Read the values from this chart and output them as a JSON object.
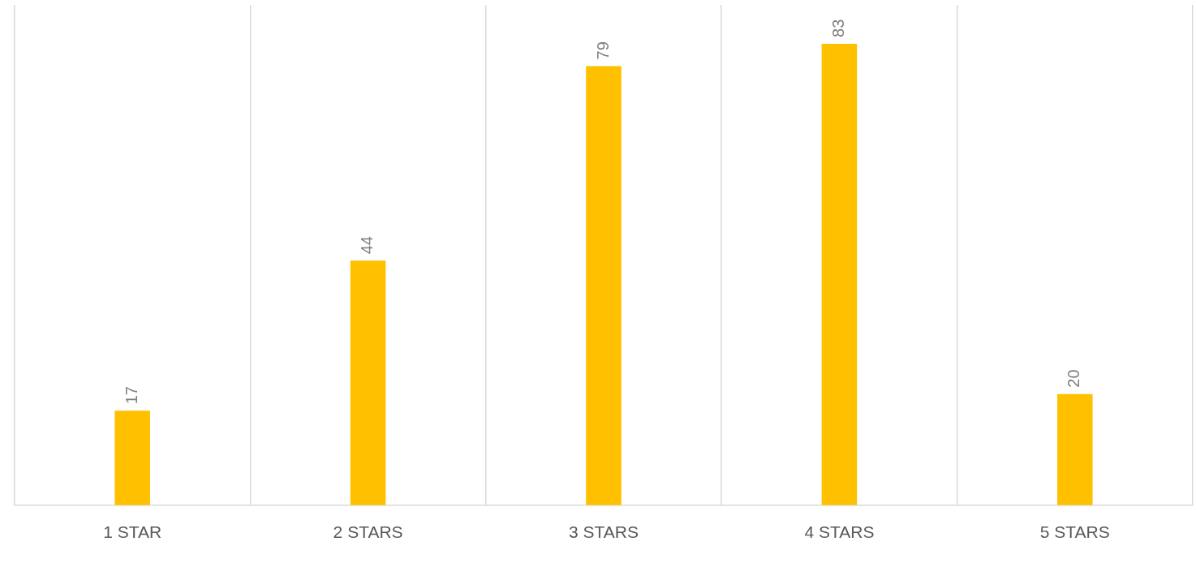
{
  "chart_data": {
    "type": "bar",
    "categories": [
      "1 STAR",
      "2 STARS",
      "3 STARS",
      "4 STARS",
      "5 STARS"
    ],
    "values": [
      17,
      44,
      79,
      83,
      20
    ],
    "color": "#ffc000",
    "data_labels": true,
    "grid": "x",
    "legend": false
  }
}
